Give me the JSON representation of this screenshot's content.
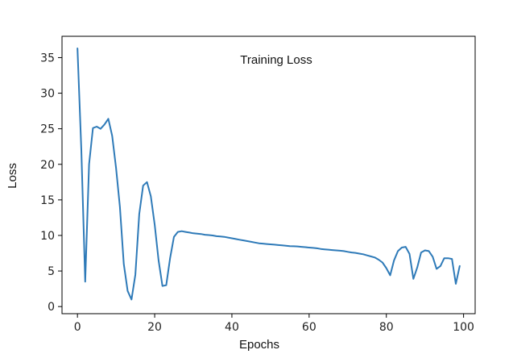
{
  "chart_data": {
    "type": "line",
    "title": "Training Loss",
    "xlabel": "Epochs",
    "ylabel": "Loss",
    "xlim": [
      -4,
      103
    ],
    "ylim": [
      -1,
      38
    ],
    "xticks": [
      0,
      20,
      40,
      60,
      80,
      100
    ],
    "yticks": [
      0,
      5,
      10,
      15,
      20,
      25,
      30,
      35
    ],
    "grid": false,
    "legend": "none",
    "series": [
      {
        "color": "#2e7ab8",
        "x": [
          0,
          1,
          2,
          3,
          4,
          5,
          6,
          7,
          8,
          9,
          10,
          11,
          12,
          13,
          14,
          15,
          16,
          17,
          18,
          19,
          20,
          21,
          22,
          23,
          24,
          25,
          26,
          27,
          28,
          29,
          30,
          31,
          32,
          33,
          34,
          35,
          36,
          37,
          38,
          39,
          40,
          41,
          42,
          43,
          44,
          45,
          46,
          47,
          48,
          49,
          50,
          51,
          52,
          53,
          54,
          55,
          56,
          57,
          58,
          59,
          60,
          61,
          62,
          63,
          64,
          65,
          66,
          67,
          68,
          69,
          70,
          71,
          72,
          73,
          74,
          75,
          76,
          77,
          78,
          79,
          80,
          81,
          82,
          83,
          84,
          85,
          86,
          87,
          88,
          89,
          90,
          91,
          92,
          93,
          94,
          95,
          96,
          97,
          98,
          99
        ],
        "y": [
          36.3,
          22.0,
          3.5,
          20.0,
          25.1,
          25.3,
          25.0,
          25.6,
          26.4,
          24.0,
          19.5,
          14.0,
          6.0,
          2.2,
          1.0,
          4.5,
          13.0,
          17.0,
          17.5,
          15.5,
          11.5,
          6.5,
          2.9,
          3.0,
          6.8,
          9.8,
          10.5,
          10.6,
          10.5,
          10.4,
          10.3,
          10.25,
          10.2,
          10.1,
          10.05,
          10.0,
          9.9,
          9.85,
          9.8,
          9.7,
          9.6,
          9.5,
          9.4,
          9.3,
          9.2,
          9.1,
          9.0,
          8.9,
          8.85,
          8.8,
          8.75,
          8.7,
          8.65,
          8.6,
          8.55,
          8.5,
          8.48,
          8.45,
          8.4,
          8.35,
          8.3,
          8.25,
          8.2,
          8.1,
          8.05,
          8.0,
          7.95,
          7.9,
          7.85,
          7.8,
          7.7,
          7.6,
          7.55,
          7.45,
          7.35,
          7.2,
          7.05,
          6.9,
          6.6,
          6.2,
          5.4,
          4.4,
          6.5,
          7.8,
          8.3,
          8.4,
          7.4,
          3.9,
          5.5,
          7.6,
          7.9,
          7.8,
          7.0,
          5.3,
          5.7,
          6.8,
          6.8,
          6.7,
          3.2,
          5.7
        ]
      }
    ]
  }
}
